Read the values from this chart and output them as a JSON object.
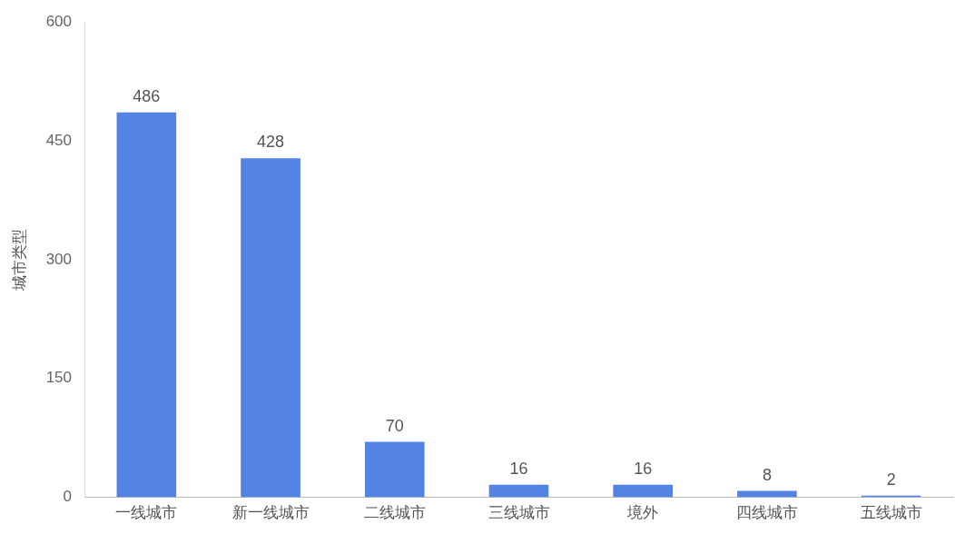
{
  "chart_data": {
    "type": "bar",
    "ylabel": "城市类型",
    "categories": [
      "一线城市",
      "新一线城市",
      "二线城市",
      "三线城市",
      "境外",
      "四线城市",
      "五线城市"
    ],
    "values": [
      486,
      428,
      70,
      16,
      16,
      8,
      2
    ],
    "color": "#5383e3",
    "ylim": [
      0,
      600
    ],
    "yticks": [
      0,
      150,
      300,
      450,
      600
    ],
    "grid": false,
    "data_labels": true,
    "legend": false
  }
}
